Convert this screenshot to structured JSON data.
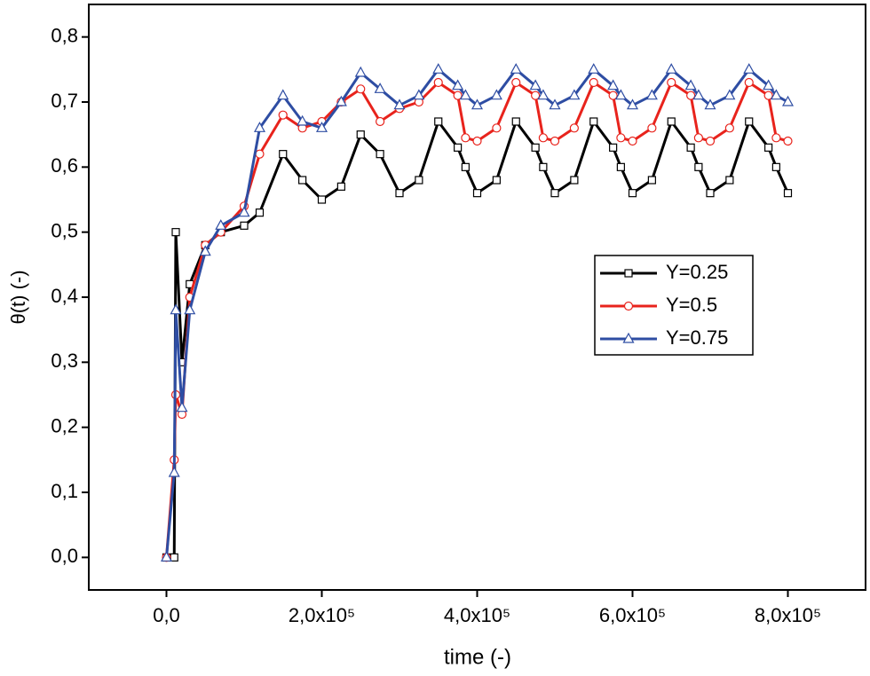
{
  "chart_data": {
    "type": "line",
    "x_label": "time (-)",
    "y_label": "θ(t) (-)",
    "xlim": [
      -100000,
      900000
    ],
    "ylim": [
      -0.05,
      0.85
    ],
    "xticks": [
      {
        "value": 0,
        "label": "0,0"
      },
      {
        "value": 200000,
        "label": "2,0x10⁵"
      },
      {
        "value": 400000,
        "label": "4,0x10⁵"
      },
      {
        "value": 600000,
        "label": "6,0x10⁵"
      },
      {
        "value": 800000,
        "label": "8,0x10⁵"
      }
    ],
    "yticks": [
      {
        "value": 0,
        "label": "0,0"
      },
      {
        "value": 0.1,
        "label": "0,1"
      },
      {
        "value": 0.2,
        "label": "0,2"
      },
      {
        "value": 0.3,
        "label": "0,3"
      },
      {
        "value": 0.4,
        "label": "0,4"
      },
      {
        "value": 0.5,
        "label": "0,5"
      },
      {
        "value": 0.6,
        "label": "0,6"
      },
      {
        "value": 0.7,
        "label": "0,7"
      },
      {
        "value": 0.8,
        "label": "0,8"
      }
    ],
    "x": [
      0,
      10000,
      12000,
      20000,
      30000,
      50000,
      70000,
      100000,
      120000,
      150000,
      175000,
      200000,
      225000,
      250000,
      275000,
      300000,
      325000,
      350000,
      375000,
      385000,
      400000,
      425000,
      450000,
      475000,
      485000,
      500000,
      525000,
      550000,
      575000,
      585000,
      600000,
      625000,
      650000,
      675000,
      685000,
      700000,
      725000,
      750000,
      775000,
      785000,
      800000
    ],
    "series": [
      {
        "name": "Y=0.25",
        "color": "#000000",
        "marker": "square",
        "values": [
          0,
          0,
          0.5,
          0.3,
          0.42,
          0.48,
          0.5,
          0.51,
          0.53,
          0.62,
          0.58,
          0.55,
          0.57,
          0.65,
          0.62,
          0.56,
          0.58,
          0.67,
          0.63,
          0.6,
          0.56,
          0.58,
          0.67,
          0.63,
          0.6,
          0.56,
          0.58,
          0.67,
          0.63,
          0.6,
          0.56,
          0.58,
          0.67,
          0.63,
          0.6,
          0.56,
          0.58,
          0.67,
          0.63,
          0.6,
          0.56
        ]
      },
      {
        "name": "Y=0.5",
        "color": "#e8231c",
        "marker": "circle",
        "values": [
          0,
          0.15,
          0.25,
          0.22,
          0.4,
          0.48,
          0.5,
          0.54,
          0.62,
          0.68,
          0.66,
          0.67,
          0.7,
          0.72,
          0.67,
          0.69,
          0.7,
          0.73,
          0.71,
          0.645,
          0.64,
          0.66,
          0.73,
          0.71,
          0.645,
          0.64,
          0.66,
          0.73,
          0.71,
          0.645,
          0.64,
          0.66,
          0.73,
          0.71,
          0.645,
          0.64,
          0.66,
          0.73,
          0.71,
          0.645,
          0.64
        ]
      },
      {
        "name": "Y=0.75",
        "color": "#2e4da3",
        "marker": "triangle",
        "values": [
          0,
          0.13,
          0.38,
          0.23,
          0.38,
          0.47,
          0.51,
          0.53,
          0.66,
          0.71,
          0.67,
          0.66,
          0.7,
          0.745,
          0.72,
          0.695,
          0.71,
          0.75,
          0.725,
          0.71,
          0.695,
          0.71,
          0.75,
          0.725,
          0.71,
          0.695,
          0.71,
          0.75,
          0.725,
          0.71,
          0.695,
          0.71,
          0.75,
          0.725,
          0.71,
          0.695,
          0.71,
          0.75,
          0.725,
          0.71,
          0.7
        ]
      }
    ]
  }
}
